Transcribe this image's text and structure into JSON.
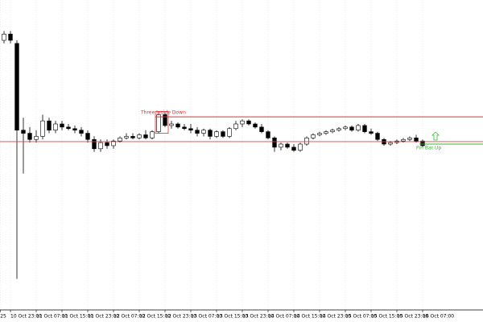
{
  "chart_data": {
    "type": "candlestick",
    "open": [
      87,
      89,
      86,
      58,
      57,
      55,
      56,
      61,
      58,
      60,
      59,
      58.5,
      58,
      57,
      55,
      52,
      54,
      53,
      54.5,
      55.5,
      56,
      55.5,
      56.5,
      55.5,
      57.5,
      63,
      59.5,
      60,
      59,
      58.5,
      58,
      57,
      58,
      56,
      57.5,
      56,
      58.5,
      60,
      61,
      60,
      59,
      57.5,
      55.5,
      52.5,
      53.5,
      52.5,
      51.5,
      53.5,
      55.5,
      56.5,
      57,
      57.5,
      58,
      58.5,
      59,
      58,
      59.5,
      57.5,
      57,
      55,
      53.5,
      54,
      54.5,
      55,
      55.5,
      54.5
    ],
    "high": [
      90,
      90,
      87,
      62,
      59,
      58,
      63,
      62,
      61,
      61,
      60,
      59.5,
      59,
      58,
      56,
      55,
      55,
      55,
      56,
      57,
      57,
      57,
      58,
      58,
      64,
      64,
      61,
      60.5,
      60,
      60,
      59,
      58.5,
      58.5,
      58,
      58,
      59,
      61,
      61.5,
      61.5,
      60.5,
      60,
      58,
      56,
      54,
      54,
      53.5,
      54,
      56,
      57,
      57.5,
      58,
      58.5,
      59,
      59.5,
      59.5,
      60,
      60,
      58.5,
      57.5,
      55.5,
      54.5,
      55,
      55.5,
      56,
      56.5,
      55
    ],
    "low": [
      86,
      86,
      10,
      44,
      54,
      54,
      55,
      57,
      57,
      58,
      58,
      57,
      56,
      54,
      51,
      51,
      52,
      52,
      54,
      55,
      55,
      55,
      55,
      55,
      57,
      59,
      58.5,
      58.5,
      58,
      57,
      56,
      56,
      55,
      55.5,
      55.5,
      55.5,
      58,
      59,
      59.5,
      58.5,
      57,
      55,
      51,
      51.5,
      52,
      51,
      51,
      53,
      55,
      56,
      56.5,
      57,
      57.5,
      58,
      57.5,
      57.5,
      57,
      56.5,
      54.5,
      53,
      53,
      53.5,
      54,
      54.5,
      54,
      52.5
    ],
    "close": [
      89,
      87,
      58,
      57,
      55,
      56,
      61,
      58,
      60,
      59,
      58.5,
      58,
      57,
      55,
      52,
      54,
      53,
      54.5,
      55.5,
      56,
      55.5,
      56.5,
      55.5,
      57.5,
      63,
      59.5,
      60,
      59,
      58.5,
      58,
      57,
      58,
      56,
      57.5,
      56,
      58.5,
      60,
      61,
      60,
      59,
      57.5,
      55.5,
      52.5,
      53.5,
      52.5,
      51.5,
      53.5,
      55.5,
      56.5,
      57,
      57.5,
      58,
      58.5,
      59,
      58,
      59.5,
      57.5,
      57,
      55,
      53.5,
      54,
      54.5,
      55,
      55.5,
      54.5,
      53
    ],
    "xlim": [
      -0.625,
      74.375
    ],
    "ylim": [
      0,
      100
    ],
    "xticks": [
      {
        "value": -0.6,
        "label": "25"
      },
      {
        "value": 1,
        "label": "10 Oct 23:00"
      },
      {
        "value": 5,
        "label": "11 Oct 07:00"
      },
      {
        "value": 9,
        "label": "11 Oct 15:00"
      },
      {
        "value": 13,
        "label": "11 Oct 23:00"
      },
      {
        "value": 17,
        "label": "12 Oct 07:00"
      },
      {
        "value": 21,
        "label": "12 Oct 15:00"
      },
      {
        "value": 25,
        "label": "12 Oct 23:00"
      },
      {
        "value": 29,
        "label": "13 Oct 07:00"
      },
      {
        "value": 33,
        "label": "13 Oct 15:00"
      },
      {
        "value": 37,
        "label": "13 Oct 23:00"
      },
      {
        "value": 41,
        "label": "14 Oct 07:00"
      },
      {
        "value": 45,
        "label": "14 Oct 15:00"
      },
      {
        "value": 49,
        "label": "14 Oct 23:00"
      },
      {
        "value": 53,
        "label": "15 Oct 07:00"
      },
      {
        "value": 57,
        "label": "15 Oct 15:00"
      },
      {
        "value": 61,
        "label": "15 Oct 23:00"
      },
      {
        "value": 65,
        "label": "16 Oct 07:00"
      }
    ],
    "grid": true,
    "levels": [
      {
        "value": 54.3,
        "color": "#e84040"
      }
    ],
    "annotations": [
      {
        "text": "Three Inside Down",
        "color": "#e03030",
        "level": 62.3,
        "start": 24,
        "direction": "down"
      },
      {
        "text": "Pin Bar Up",
        "color": "#33bb33",
        "level": 53.5,
        "start": 65,
        "direction": "up"
      }
    ]
  }
}
